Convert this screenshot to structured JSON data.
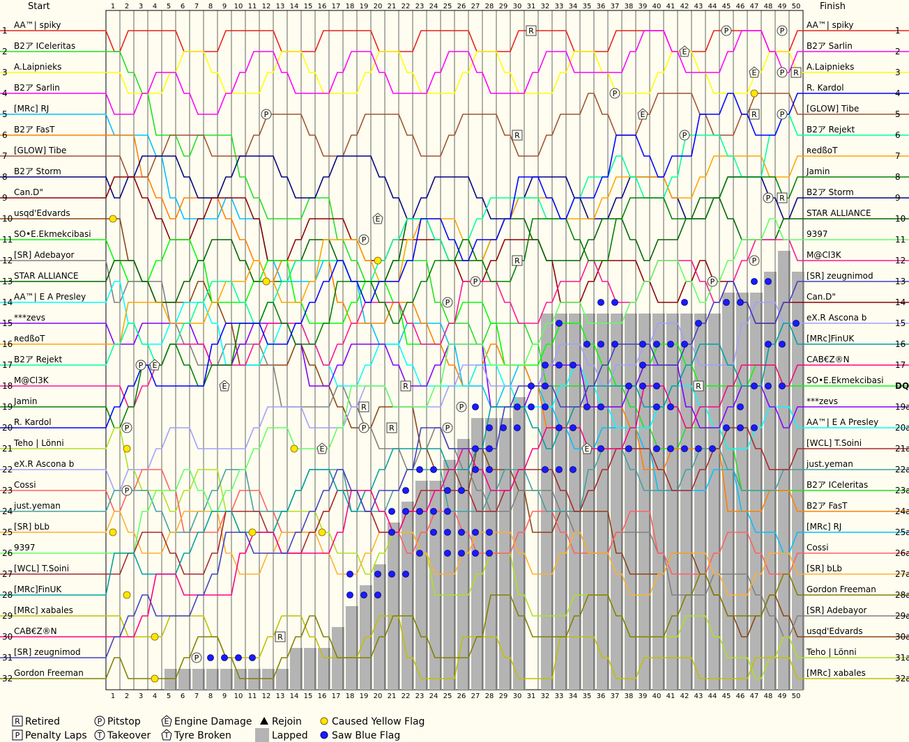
{
  "chart_data": {
    "type": "line",
    "header": {
      "start": "Start",
      "finish": "Finish"
    },
    "laps": 50,
    "positions": 32,
    "start_grid": [
      "AA™| spiky",
      "B2ア ICeleritas",
      "A.Laipnieks",
      "B2ア Sarlin",
      "[MRc] RJ",
      "B2ア FasT",
      "[GLOW] Tibe",
      "B2ア Storm",
      "Can.D\"",
      "usqd'Edvards",
      "SO•E.Ekmekcibasi",
      "[SR] Adebayor",
      "STAR ALLIANCE",
      "AA™| E A Presley",
      "***zevs",
      "ʀedßoT",
      "B2ア Rejekt",
      "M@Cl3K",
      "Jamin",
      "R. Kardol",
      "Teho | Lönni",
      "eX.R Ascona b",
      "Cossi",
      "just.yeman",
      "[SR] bLb",
      "9397",
      "[WCL] T.Soini",
      "[MRc]FinUK",
      "[MRc] xabales",
      "CAB€Z®N",
      "[SR] zeugnimod",
      "Gordon Freeman"
    ],
    "finish_order": [
      "AA™| spiky",
      "B2ア Sarlin",
      "A.Laipnieks",
      "R. Kardol",
      "[GLOW] Tibe",
      "B2ア Rejekt",
      "ʀedßoT",
      "Jamin",
      "B2ア Storm",
      "STAR ALLIANCE",
      "9397",
      "M@Cl3K",
      "[SR] zeugnimod",
      "Can.D\"",
      "eX.R Ascona b",
      "[MRc]FinUK",
      "CAB€Z®N",
      "SO•E.Ekmekcibasi",
      "***zevs",
      "AA™| E A Presley",
      "[WCL] T.Soini",
      "just.yeman",
      "B2ア ICeleritas",
      "B2ア FasT",
      "[MRc] RJ",
      "Cossi",
      "[SR] bLb",
      "Gordon Freeman",
      "[SR] Adebayor",
      "usqd'Edvards",
      "Teho | Lönni",
      "[MRc] xabales"
    ],
    "finish_pos_labels": [
      "1",
      "2",
      "3",
      "4",
      "5",
      "6",
      "7",
      "8",
      "9",
      "10",
      "11",
      "12",
      "13",
      "14",
      "15",
      "16",
      "17",
      "DQ",
      "19a",
      "20a",
      "21a",
      "22a",
      "23a",
      "24a",
      "25a",
      "26a",
      "27a",
      "28a",
      "29a",
      "30a",
      "31a",
      "32a"
    ],
    "driver_colors": [
      "#e8201a",
      "#20e020",
      "#ffff00",
      "#ff00ff",
      "#00c0ff",
      "#ff8000",
      "#a0522d",
      "#000080",
      "#8b0000",
      "#8b4513",
      "#00ff00",
      "#808080",
      "#006400",
      "#00ffff",
      "#8000ff",
      "#ffa500",
      "#00ffa0",
      "#ff1493",
      "#008000",
      "#0000ff",
      "#b0e020",
      "#a0a0ff",
      "#ff6060",
      "#40a0a0",
      "#ffb030",
      "#60ff60",
      "#a52a2a",
      "#00a0a0",
      "#c0c000",
      "#ff0080",
      "#4040c0",
      "#808000"
    ],
    "legend": [
      {
        "icon": "retired-icon",
        "label": "Retired"
      },
      {
        "icon": "penalty-laps-icon",
        "label": "Penalty Laps"
      },
      {
        "icon": "pitstop-icon",
        "label": "Pitstop"
      },
      {
        "icon": "takeover-icon",
        "label": "Takeover"
      },
      {
        "icon": "engine-damage-icon",
        "label": "Engine Damage"
      },
      {
        "icon": "tyre-broken-icon",
        "label": "Tyre Broken"
      },
      {
        "icon": "rejoin-icon",
        "label": "Rejoin"
      },
      {
        "icon": "lapped-icon",
        "label": "Lapped"
      },
      {
        "icon": "caused-yellow-flag-icon",
        "label": "Caused Yellow Flag"
      },
      {
        "icon": "saw-blue-flag-icon",
        "label": "Saw Blue Flag"
      }
    ],
    "lapped_counts": [
      0,
      0,
      0,
      0,
      1,
      1,
      1,
      1,
      1,
      1,
      1,
      1,
      1,
      2,
      2,
      2,
      3,
      4,
      5,
      6,
      8,
      9,
      10,
      10,
      11,
      12,
      13,
      13,
      13,
      14,
      0,
      18,
      18,
      18,
      18,
      18,
      18,
      18,
      18,
      18,
      18,
      18,
      18,
      18,
      19,
      19,
      19,
      20,
      21,
      20
    ],
    "markers": [
      {
        "kind": "retired",
        "lap": 31,
        "pos": 1,
        "label": "R"
      },
      {
        "kind": "retired",
        "lap": 30,
        "pos": 6,
        "label": "R"
      },
      {
        "kind": "retired",
        "lap": 30,
        "pos": 12,
        "label": "R"
      },
      {
        "kind": "retired",
        "lap": 22,
        "pos": 18,
        "label": "R"
      },
      {
        "kind": "retired",
        "lap": 19,
        "pos": 19,
        "label": "R"
      },
      {
        "kind": "retired",
        "lap": 21,
        "pos": 20,
        "label": "R"
      },
      {
        "kind": "retired",
        "lap": 13,
        "pos": 30,
        "label": "R"
      },
      {
        "kind": "retired",
        "lap": 47,
        "pos": 5,
        "label": "R"
      },
      {
        "kind": "retired",
        "lap": 43,
        "pos": 18,
        "label": "R"
      },
      {
        "kind": "retired",
        "lap": 49,
        "pos": 9,
        "label": "R"
      },
      {
        "kind": "retired",
        "lap": 50,
        "pos": 3,
        "label": "R"
      },
      {
        "kind": "penalty",
        "lap": 45,
        "pos": 1,
        "label": "P"
      },
      {
        "kind": "penalty",
        "lap": 49,
        "pos": 1,
        "label": "P"
      },
      {
        "kind": "penalty",
        "lap": 25,
        "pos": 20,
        "label": "P"
      },
      {
        "kind": "penalty",
        "lap": 2,
        "pos": 20,
        "label": "P"
      },
      {
        "kind": "pitstop",
        "lap": 12,
        "pos": 5,
        "label": "P"
      },
      {
        "kind": "pitstop",
        "lap": 37,
        "pos": 4,
        "label": "P"
      },
      {
        "kind": "pitstop",
        "lap": 42,
        "pos": 6,
        "label": "P"
      },
      {
        "kind": "pitstop",
        "lap": 49,
        "pos": 3,
        "label": "P"
      },
      {
        "kind": "pitstop",
        "lap": 49,
        "pos": 5,
        "label": "P"
      },
      {
        "kind": "pitstop",
        "lap": 48,
        "pos": 9,
        "label": "P"
      },
      {
        "kind": "pitstop",
        "lap": 47,
        "pos": 12,
        "label": "P"
      },
      {
        "kind": "pitstop",
        "lap": 44,
        "pos": 13,
        "label": "P"
      },
      {
        "kind": "pitstop",
        "lap": 27,
        "pos": 13,
        "label": "P"
      },
      {
        "kind": "pitstop",
        "lap": 25,
        "pos": 14,
        "label": "P"
      },
      {
        "kind": "pitstop",
        "lap": 19,
        "pos": 11,
        "label": "P"
      },
      {
        "kind": "pitstop",
        "lap": 19,
        "pos": 20,
        "label": "P"
      },
      {
        "kind": "pitstop",
        "lap": 3,
        "pos": 17,
        "label": "P"
      },
      {
        "kind": "pitstop",
        "lap": 2,
        "pos": 23,
        "label": "P"
      },
      {
        "kind": "pitstop",
        "lap": 7,
        "pos": 31,
        "label": "P"
      },
      {
        "kind": "pitstop",
        "lap": 26,
        "pos": 19,
        "label": "P"
      },
      {
        "kind": "engine",
        "lap": 42,
        "pos": 2,
        "label": "E"
      },
      {
        "kind": "engine",
        "lap": 47,
        "pos": 3,
        "label": "E"
      },
      {
        "kind": "engine",
        "lap": 39,
        "pos": 5,
        "label": "E"
      },
      {
        "kind": "engine",
        "lap": 20,
        "pos": 10,
        "label": "E"
      },
      {
        "kind": "engine",
        "lap": 4,
        "pos": 17,
        "label": "E"
      },
      {
        "kind": "engine",
        "lap": 9,
        "pos": 18,
        "label": "E"
      },
      {
        "kind": "engine",
        "lap": 16,
        "pos": 21,
        "label": "E"
      },
      {
        "kind": "engine",
        "lap": 35,
        "pos": 21,
        "label": "E"
      }
    ],
    "yellow_flags": [
      {
        "lap": 1,
        "pos": 10
      },
      {
        "lap": 12,
        "pos": 13
      },
      {
        "lap": 2,
        "pos": 21
      },
      {
        "lap": 14,
        "pos": 21
      },
      {
        "lap": 1,
        "pos": 25
      },
      {
        "lap": 11,
        "pos": 25
      },
      {
        "lap": 16,
        "pos": 25
      },
      {
        "lap": 2,
        "pos": 28
      },
      {
        "lap": 4,
        "pos": 30
      },
      {
        "lap": 4,
        "pos": 32
      },
      {
        "lap": 20,
        "pos": 12
      },
      {
        "lap": 47,
        "pos": 4
      }
    ],
    "blue_flags": [
      {
        "lap": 8,
        "pos": 31
      },
      {
        "lap": 9,
        "pos": 31
      },
      {
        "lap": 10,
        "pos": 31
      },
      {
        "lap": 11,
        "pos": 31
      },
      {
        "lap": 18,
        "pos": 27
      },
      {
        "lap": 18,
        "pos": 28
      },
      {
        "lap": 19,
        "pos": 28
      },
      {
        "lap": 20,
        "pos": 28
      },
      {
        "lap": 20,
        "pos": 27
      },
      {
        "lap": 21,
        "pos": 27
      },
      {
        "lap": 22,
        "pos": 27
      },
      {
        "lap": 21,
        "pos": 25
      },
      {
        "lap": 21,
        "pos": 24
      },
      {
        "lap": 22,
        "pos": 24
      },
      {
        "lap": 22,
        "pos": 23
      },
      {
        "lap": 23,
        "pos": 22
      },
      {
        "lap": 24,
        "pos": 22
      },
      {
        "lap": 25,
        "pos": 23
      },
      {
        "lap": 26,
        "pos": 23
      },
      {
        "lap": 27,
        "pos": 22
      },
      {
        "lap": 28,
        "pos": 22
      },
      {
        "lap": 27,
        "pos": 21
      },
      {
        "lap": 28,
        "pos": 21
      },
      {
        "lap": 28,
        "pos": 20
      },
      {
        "lap": 29,
        "pos": 20
      },
      {
        "lap": 30,
        "pos": 20
      },
      {
        "lap": 27,
        "pos": 19
      },
      {
        "lap": 30,
        "pos": 19
      },
      {
        "lap": 31,
        "pos": 19
      },
      {
        "lap": 23,
        "pos": 24
      },
      {
        "lap": 24,
        "pos": 24
      },
      {
        "lap": 25,
        "pos": 24
      },
      {
        "lap": 24,
        "pos": 25
      },
      {
        "lap": 25,
        "pos": 25
      },
      {
        "lap": 26,
        "pos": 25
      },
      {
        "lap": 27,
        "pos": 25
      },
      {
        "lap": 28,
        "pos": 25
      },
      {
        "lap": 23,
        "pos": 26
      },
      {
        "lap": 25,
        "pos": 26
      },
      {
        "lap": 26,
        "pos": 26
      },
      {
        "lap": 27,
        "pos": 26
      },
      {
        "lap": 28,
        "pos": 26
      },
      {
        "lap": 31,
        "pos": 18
      },
      {
        "lap": 32,
        "pos": 18
      },
      {
        "lap": 32,
        "pos": 17
      },
      {
        "lap": 33,
        "pos": 17
      },
      {
        "lap": 34,
        "pos": 17
      },
      {
        "lap": 32,
        "pos": 19
      },
      {
        "lap": 33,
        "pos": 20
      },
      {
        "lap": 34,
        "pos": 20
      },
      {
        "lap": 32,
        "pos": 22
      },
      {
        "lap": 33,
        "pos": 22
      },
      {
        "lap": 34,
        "pos": 22
      },
      {
        "lap": 35,
        "pos": 21
      },
      {
        "lap": 36,
        "pos": 21
      },
      {
        "lap": 38,
        "pos": 21
      },
      {
        "lap": 40,
        "pos": 21
      },
      {
        "lap": 41,
        "pos": 21
      },
      {
        "lap": 42,
        "pos": 21
      },
      {
        "lap": 43,
        "pos": 21
      },
      {
        "lap": 44,
        "pos": 21
      },
      {
        "lap": 35,
        "pos": 16
      },
      {
        "lap": 36,
        "pos": 16
      },
      {
        "lap": 37,
        "pos": 16
      },
      {
        "lap": 39,
        "pos": 16
      },
      {
        "lap": 40,
        "pos": 16
      },
      {
        "lap": 41,
        "pos": 16
      },
      {
        "lap": 42,
        "pos": 16
      },
      {
        "lap": 35,
        "pos": 19
      },
      {
        "lap": 36,
        "pos": 19
      },
      {
        "lap": 40,
        "pos": 19
      },
      {
        "lap": 41,
        "pos": 19
      },
      {
        "lap": 38,
        "pos": 18
      },
      {
        "lap": 39,
        "pos": 18
      },
      {
        "lap": 40,
        "pos": 18
      },
      {
        "lap": 36,
        "pos": 14
      },
      {
        "lap": 37,
        "pos": 14
      },
      {
        "lap": 42,
        "pos": 14
      },
      {
        "lap": 45,
        "pos": 14
      },
      {
        "lap": 46,
        "pos": 14
      },
      {
        "lap": 33,
        "pos": 15
      },
      {
        "lap": 43,
        "pos": 15
      },
      {
        "lap": 39,
        "pos": 17
      },
      {
        "lap": 45,
        "pos": 20
      },
      {
        "lap": 46,
        "pos": 20
      },
      {
        "lap": 47,
        "pos": 20
      },
      {
        "lap": 46,
        "pos": 19
      },
      {
        "lap": 47,
        "pos": 18
      },
      {
        "lap": 48,
        "pos": 18
      },
      {
        "lap": 49,
        "pos": 18
      },
      {
        "lap": 47,
        "pos": 13
      },
      {
        "lap": 48,
        "pos": 13
      },
      {
        "lap": 48,
        "pos": 16
      },
      {
        "lap": 49,
        "pos": 16
      },
      {
        "lap": 50,
        "pos": 15
      }
    ]
  }
}
